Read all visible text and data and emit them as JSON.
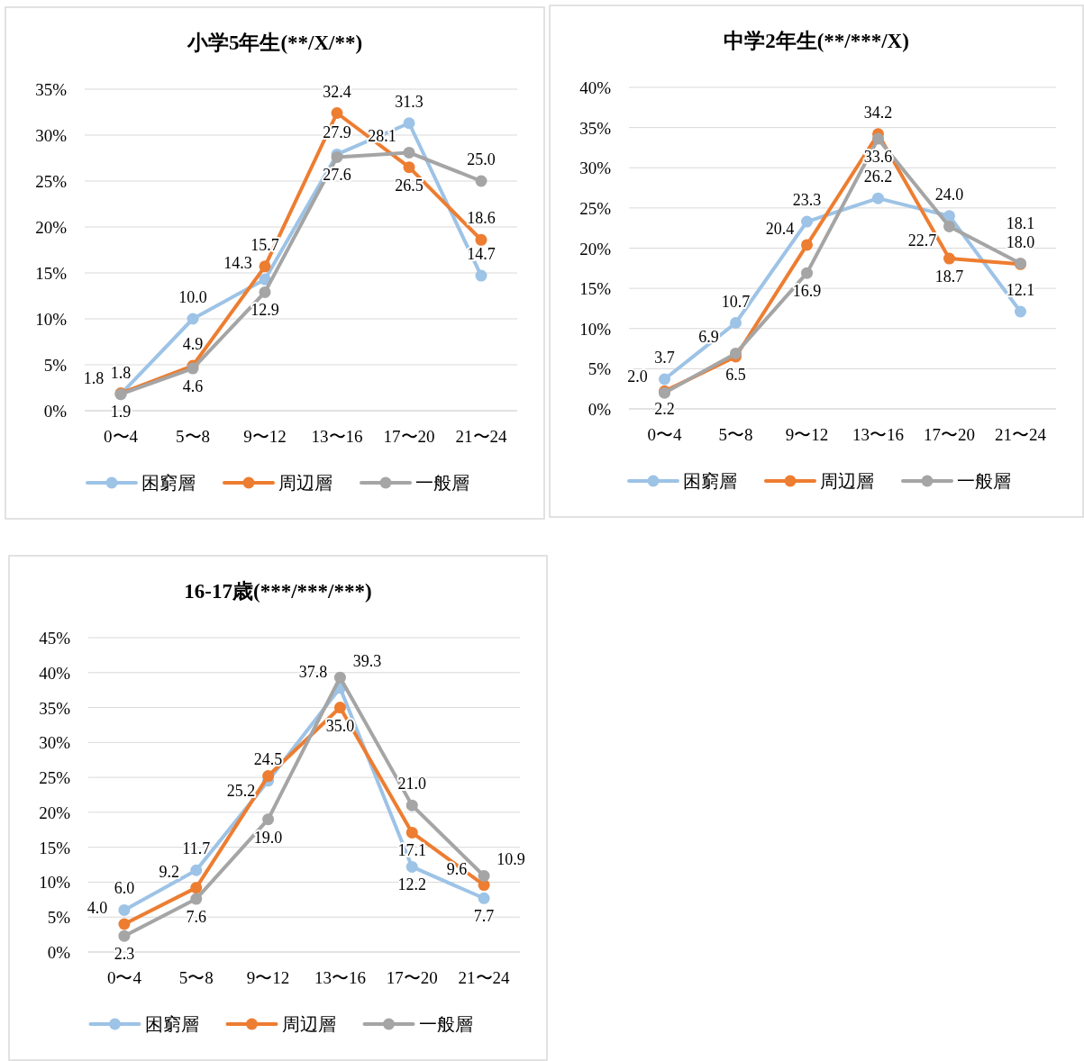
{
  "chart_data": [
    {
      "type": "line",
      "title": "小学5年生(**/X/**)",
      "categories": [
        "0〜4",
        "5〜8",
        "9〜12",
        "13〜16",
        "17〜20",
        "21〜24"
      ],
      "series": [
        {
          "name": "困窮層",
          "color": "#9dc3e6",
          "values": [
            1.8,
            10.0,
            14.3,
            27.9,
            31.3,
            14.7
          ],
          "value_labels": [
            "1.8",
            "10.0",
            "14.3",
            "27.9",
            "31.3",
            "14.7"
          ]
        },
        {
          "name": "周辺層",
          "color": "#ed7d31",
          "values": [
            1.9,
            4.9,
            15.7,
            32.4,
            26.5,
            18.6
          ],
          "value_labels": [
            "1.9",
            "4.9",
            "15.7",
            "32.4",
            "26.5",
            "18.6"
          ]
        },
        {
          "name": "一般層",
          "color": "#a5a5a5",
          "values": [
            1.8,
            4.6,
            12.9,
            27.6,
            28.1,
            25.0
          ],
          "value_labels": [
            "1.8",
            "4.6",
            "12.9",
            "27.6",
            "28.1",
            "25.0"
          ]
        }
      ],
      "ylim": [
        0,
        35
      ],
      "yticks": [
        {
          "value": 0,
          "label": "0%"
        },
        {
          "value": 5,
          "label": "5%"
        },
        {
          "value": 10,
          "label": "10%"
        },
        {
          "value": 15,
          "label": "15%"
        },
        {
          "value": 20,
          "label": "20%"
        },
        {
          "value": 25,
          "label": "25%"
        },
        {
          "value": 30,
          "label": "30%"
        },
        {
          "value": 35,
          "label": "35%"
        }
      ],
      "grid": "y",
      "legend": "bottom",
      "marker": "circle"
    },
    {
      "type": "line",
      "title": "中学2年生(**/***/X)",
      "categories": [
        "0〜4",
        "5〜8",
        "9〜12",
        "13〜16",
        "17〜20",
        "21〜24"
      ],
      "series": [
        {
          "name": "困窮層",
          "color": "#9dc3e6",
          "values": [
            3.7,
            10.7,
            23.3,
            26.2,
            24.0,
            12.1
          ],
          "value_labels": [
            "3.7",
            "10.7",
            "23.3",
            "26.2",
            "24.0",
            "12.1"
          ]
        },
        {
          "name": "周辺層",
          "color": "#ed7d31",
          "values": [
            2.2,
            6.5,
            20.4,
            34.2,
            18.7,
            18.0
          ],
          "value_labels": [
            "2.2",
            "6.5",
            "20.4",
            "34.2",
            "18.7",
            "18.0"
          ]
        },
        {
          "name": "一般層",
          "color": "#a5a5a5",
          "values": [
            2.0,
            6.9,
            16.9,
            33.6,
            22.7,
            18.1
          ],
          "value_labels": [
            "2.0",
            "6.9",
            "16.9",
            "33.6",
            "22.7",
            "18.1"
          ]
        }
      ],
      "ylim": [
        0,
        40
      ],
      "yticks": [
        {
          "value": 0,
          "label": "0%"
        },
        {
          "value": 5,
          "label": "5%"
        },
        {
          "value": 10,
          "label": "10%"
        },
        {
          "value": 15,
          "label": "15%"
        },
        {
          "value": 20,
          "label": "20%"
        },
        {
          "value": 25,
          "label": "25%"
        },
        {
          "value": 30,
          "label": "30%"
        },
        {
          "value": 35,
          "label": "35%"
        },
        {
          "value": 40,
          "label": "40%"
        }
      ],
      "grid": "y",
      "legend": "bottom",
      "marker": "circle"
    },
    {
      "type": "line",
      "title": "16-17歳(***/***/***)",
      "categories": [
        "0〜4",
        "5〜8",
        "9〜12",
        "13〜16",
        "17〜20",
        "21〜24"
      ],
      "series": [
        {
          "name": "困窮層",
          "color": "#9dc3e6",
          "values": [
            6.0,
            11.7,
            24.5,
            37.8,
            12.2,
            7.7
          ],
          "value_labels": [
            "6.0",
            "11.7",
            "24.5",
            "37.8",
            "12.2",
            "7.7"
          ]
        },
        {
          "name": "周辺層",
          "color": "#ed7d31",
          "values": [
            4.0,
            9.2,
            25.2,
            35.0,
            17.1,
            9.6
          ],
          "value_labels": [
            "4.0",
            "9.2",
            "25.2",
            "35.0",
            "17.1",
            "9.6"
          ]
        },
        {
          "name": "一般層",
          "color": "#a5a5a5",
          "values": [
            2.3,
            7.6,
            19.0,
            39.3,
            21.0,
            10.9
          ],
          "value_labels": [
            "2.3",
            "7.6",
            "19.0",
            "39.3",
            "21.0",
            "10.9"
          ]
        }
      ],
      "ylim": [
        0,
        45
      ],
      "yticks": [
        {
          "value": 0,
          "label": "0%"
        },
        {
          "value": 5,
          "label": "5%"
        },
        {
          "value": 10,
          "label": "10%"
        },
        {
          "value": 15,
          "label": "15%"
        },
        {
          "value": 20,
          "label": "20%"
        },
        {
          "value": 25,
          "label": "25%"
        },
        {
          "value": 30,
          "label": "30%"
        },
        {
          "value": 35,
          "label": "35%"
        },
        {
          "value": 40,
          "label": "40%"
        },
        {
          "value": 45,
          "label": "45%"
        }
      ],
      "grid": "y",
      "legend": "bottom",
      "marker": "circle"
    }
  ]
}
